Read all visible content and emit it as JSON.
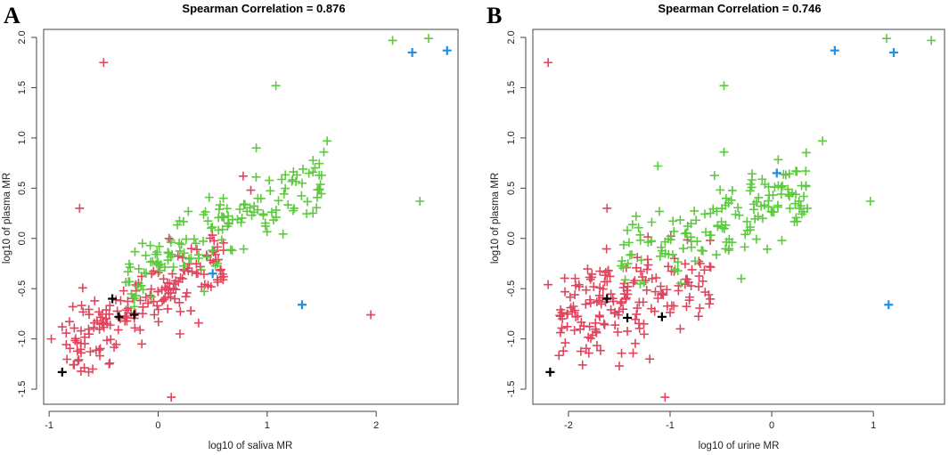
{
  "panels": {
    "A": {
      "letter": "A"
    },
    "B": {
      "letter": "B"
    }
  },
  "colors": {
    "red": "#e0455e",
    "green": "#5cc93e",
    "blue": "#1f8fe0",
    "black": "#000000",
    "axis": "#444444"
  },
  "chart_data": [
    {
      "type": "scatter",
      "title": "Spearman Correlation = 0.876",
      "xlabel": "log10 of saliva MR",
      "ylabel": "log10 of plasma MR",
      "xlim": [
        -1.05,
        2.75
      ],
      "ylim": [
        -1.65,
        2.08
      ],
      "xticks": [
        -1,
        0,
        1,
        2
      ],
      "yticks": [
        -1.5,
        -1.0,
        -0.5,
        0.0,
        0.5,
        1.0,
        1.5,
        2.0
      ],
      "ytick_labels": [
        "-1.5",
        "-1.0",
        "-0.5",
        "0.0",
        "0.5",
        "1.0",
        "1.5",
        "2.0"
      ],
      "xtick_labels": [
        "-1",
        "0",
        "1",
        "2"
      ],
      "cluster_centers": {
        "red": {
          "x": [
            -0.85,
            0.6
          ],
          "y_fn": "0.63x-0.55",
          "sd": 0.15,
          "n": 170
        },
        "green": {
          "x": [
            -0.3,
            1.5
          ],
          "y_fn": "0.55x-0.22",
          "sd": 0.16,
          "n": 150
        }
      },
      "series": [
        {
          "name": "red",
          "color_key": "red",
          "points": [
            [
              -0.5,
              1.75
            ],
            [
              -0.72,
              0.3
            ],
            [
              1.95,
              -0.76
            ],
            [
              0.12,
              -1.58
            ],
            [
              -0.98,
              -1.0
            ],
            [
              -0.45,
              -1.25
            ],
            [
              -0.88,
              -0.88
            ],
            [
              0.2,
              -0.95
            ],
            [
              0.85,
              0.48
            ],
            [
              0.78,
              0.62
            ],
            [
              0.1,
              0.0
            ],
            [
              0.3,
              -0.72
            ],
            [
              -0.15,
              -1.05
            ],
            [
              0.6,
              -0.38
            ],
            [
              -0.6,
              -1.3
            ]
          ]
        },
        {
          "name": "green",
          "color_key": "green",
          "points": [
            [
              2.15,
              1.97
            ],
            [
              2.48,
              1.99
            ],
            [
              1.08,
              1.52
            ],
            [
              2.4,
              0.37
            ],
            [
              1.55,
              0.97
            ],
            [
              1.52,
              0.86
            ],
            [
              1.42,
              0.66
            ],
            [
              1.32,
              0.55
            ],
            [
              0.9,
              0.9
            ]
          ]
        },
        {
          "name": "blue",
          "color_key": "blue",
          "points": [
            [
              2.33,
              1.85
            ],
            [
              2.65,
              1.87
            ],
            [
              0.5,
              -0.35
            ],
            [
              1.32,
              -0.66
            ]
          ]
        },
        {
          "name": "black",
          "color_key": "black",
          "points": [
            [
              -0.88,
              -1.33
            ],
            [
              -0.42,
              -0.6
            ],
            [
              -0.36,
              -0.78
            ],
            [
              -0.22,
              -0.76
            ]
          ]
        }
      ]
    },
    {
      "type": "scatter",
      "title": "Spearman Correlation = 0.746",
      "xlabel": "log10 of urine MR",
      "ylabel": "log10 of plasma MR",
      "xlim": [
        -2.35,
        1.7
      ],
      "ylim": [
        -1.65,
        2.08
      ],
      "xticks": [
        -2,
        -1,
        0,
        1
      ],
      "yticks": [
        -1.5,
        -1.0,
        -0.5,
        0.0,
        0.5,
        1.0,
        1.5,
        2.0
      ],
      "ytick_labels": [
        "-1.5",
        "-1.0",
        "-0.5",
        "0.0",
        "0.5",
        "1.0",
        "1.5",
        "2.0"
      ],
      "xtick_labels": [
        "-2",
        "-1",
        "0",
        "1"
      ],
      "cluster_centers": {
        "red": {
          "x": [
            -2.1,
            -0.6
          ],
          "y_fn": "0.28x-0.15",
          "sd": 0.22,
          "n": 170
        },
        "green": {
          "x": [
            -1.5,
            0.35
          ],
          "y_fn": "0.38x+0.36",
          "sd": 0.2,
          "n": 150
        }
      },
      "series": [
        {
          "name": "red",
          "color_key": "red",
          "points": [
            [
              -2.2,
              1.75
            ],
            [
              -1.62,
              0.3
            ],
            [
              -2.2,
              -0.46
            ],
            [
              -1.05,
              -1.58
            ],
            [
              -2.05,
              -1.12
            ],
            [
              -1.5,
              -1.27
            ],
            [
              -1.2,
              -1.2
            ],
            [
              -0.9,
              -0.9
            ]
          ]
        },
        {
          "name": "green",
          "color_key": "green",
          "points": [
            [
              1.13,
              1.99
            ],
            [
              1.57,
              1.97
            ],
            [
              -0.47,
              1.52
            ],
            [
              0.97,
              0.37
            ],
            [
              0.5,
              0.97
            ],
            [
              -1.12,
              0.72
            ],
            [
              -0.3,
              -0.4
            ],
            [
              -0.47,
              0.86
            ],
            [
              0.1,
              -0.02
            ],
            [
              0.35,
              0.3
            ]
          ]
        },
        {
          "name": "blue",
          "color_key": "blue",
          "points": [
            [
              0.62,
              1.87
            ],
            [
              1.2,
              1.85
            ],
            [
              0.05,
              0.65
            ],
            [
              1.15,
              -0.66
            ]
          ]
        },
        {
          "name": "black",
          "color_key": "black",
          "points": [
            [
              -2.18,
              -1.33
            ],
            [
              -1.62,
              -0.6
            ],
            [
              -1.42,
              -0.79
            ],
            [
              -1.08,
              -0.78
            ]
          ]
        }
      ]
    }
  ]
}
